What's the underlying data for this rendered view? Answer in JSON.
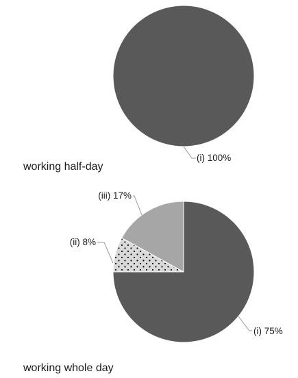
{
  "chart_data": [
    {
      "type": "pie",
      "caption": "working half-day",
      "slices": [
        {
          "label": "(i) 100%",
          "value": 100,
          "color": "#595959",
          "pattern": "solid"
        }
      ]
    },
    {
      "type": "pie",
      "caption": "working whole day",
      "slices": [
        {
          "label": "(i) 75%",
          "value": 75,
          "color": "#595959",
          "pattern": "solid"
        },
        {
          "label": "(ii) 8%",
          "value": 8,
          "color": "#d9d9d9",
          "pattern": "dots"
        },
        {
          "label": "(iii) 17%",
          "value": 17,
          "color": "#a6a6a6",
          "pattern": "solid"
        }
      ]
    }
  ]
}
